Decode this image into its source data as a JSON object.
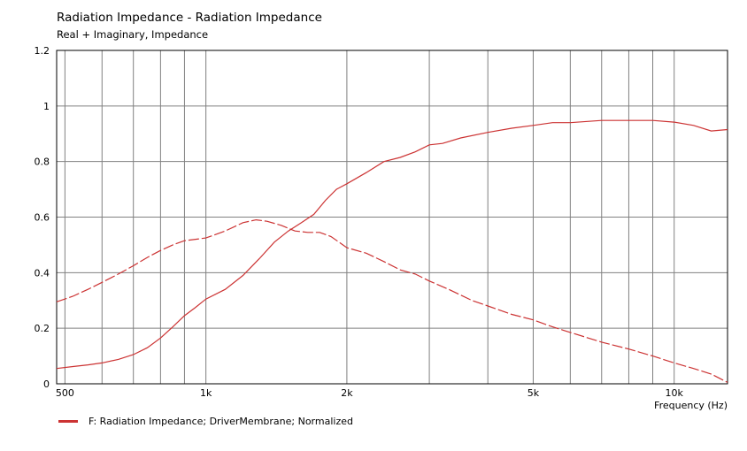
{
  "header": {
    "title": "Radiation Impedance - Radiation Impedance",
    "subtitle": "Real + Imaginary, Impedance"
  },
  "legend": {
    "entry": "F: Radiation Impedance;  DriverMembrane; Normalized"
  },
  "colors": {
    "series": "#cc3333",
    "grid": "#808080",
    "axis": "#000000"
  },
  "chart_data": {
    "type": "line",
    "xscale": "log",
    "xlim": [
      480,
      13000
    ],
    "ylim": [
      0,
      1.2
    ],
    "xlabel": "Frequency  (Hz)",
    "ylabel": "",
    "grid": true,
    "legend_position": "bottom-left",
    "x_tick_labels": [
      {
        "value": 500,
        "label": "500"
      },
      {
        "value": 1000,
        "label": "1k"
      },
      {
        "value": 2000,
        "label": "2k"
      },
      {
        "value": 5000,
        "label": "5k"
      },
      {
        "value": 10000,
        "label": "10k"
      }
    ],
    "x_minor_grid": [
      600,
      700,
      800,
      900,
      3000,
      4000,
      6000,
      7000,
      8000,
      9000
    ],
    "y_ticks": [
      {
        "value": 0,
        "label": "0"
      },
      {
        "value": 0.2,
        "label": "0.2"
      },
      {
        "value": 0.4,
        "label": "0.4"
      },
      {
        "value": 0.6,
        "label": "0.6"
      },
      {
        "value": 0.8,
        "label": "0.8"
      },
      {
        "value": 1,
        "label": "1"
      },
      {
        "value": 1.2,
        "label": "1.2"
      }
    ],
    "series": [
      {
        "style": "solid",
        "points": [
          [
            480,
            0.055
          ],
          [
            520,
            0.062
          ],
          [
            560,
            0.068
          ],
          [
            600,
            0.075
          ],
          [
            650,
            0.088
          ],
          [
            700,
            0.105
          ],
          [
            750,
            0.13
          ],
          [
            800,
            0.165
          ],
          [
            850,
            0.205
          ],
          [
            900,
            0.245
          ],
          [
            950,
            0.275
          ],
          [
            1000,
            0.305
          ],
          [
            1100,
            0.34
          ],
          [
            1200,
            0.39
          ],
          [
            1300,
            0.45
          ],
          [
            1400,
            0.51
          ],
          [
            1500,
            0.55
          ],
          [
            1600,
            0.58
          ],
          [
            1700,
            0.61
          ],
          [
            1800,
            0.66
          ],
          [
            1900,
            0.7
          ],
          [
            2000,
            0.72
          ],
          [
            2200,
            0.76
          ],
          [
            2400,
            0.8
          ],
          [
            2600,
            0.815
          ],
          [
            2800,
            0.835
          ],
          [
            3000,
            0.86
          ],
          [
            3200,
            0.865
          ],
          [
            3500,
            0.885
          ],
          [
            4000,
            0.905
          ],
          [
            4500,
            0.92
          ],
          [
            5000,
            0.93
          ],
          [
            5500,
            0.94
          ],
          [
            6000,
            0.94
          ],
          [
            7000,
            0.948
          ],
          [
            8000,
            0.948
          ],
          [
            9000,
            0.948
          ],
          [
            10000,
            0.942
          ],
          [
            11000,
            0.93
          ],
          [
            12000,
            0.91
          ],
          [
            13000,
            0.915
          ]
        ]
      },
      {
        "style": "dashed",
        "points": [
          [
            480,
            0.295
          ],
          [
            520,
            0.315
          ],
          [
            560,
            0.34
          ],
          [
            600,
            0.365
          ],
          [
            650,
            0.395
          ],
          [
            700,
            0.425
          ],
          [
            750,
            0.455
          ],
          [
            800,
            0.48
          ],
          [
            850,
            0.5
          ],
          [
            900,
            0.515
          ],
          [
            950,
            0.52
          ],
          [
            1000,
            0.525
          ],
          [
            1100,
            0.55
          ],
          [
            1200,
            0.58
          ],
          [
            1280,
            0.59
          ],
          [
            1350,
            0.585
          ],
          [
            1450,
            0.57
          ],
          [
            1550,
            0.55
          ],
          [
            1650,
            0.545
          ],
          [
            1750,
            0.545
          ],
          [
            1850,
            0.53
          ],
          [
            2000,
            0.49
          ],
          [
            2200,
            0.47
          ],
          [
            2400,
            0.44
          ],
          [
            2600,
            0.41
          ],
          [
            2800,
            0.395
          ],
          [
            3000,
            0.37
          ],
          [
            3300,
            0.34
          ],
          [
            3700,
            0.3
          ],
          [
            4000,
            0.28
          ],
          [
            4500,
            0.25
          ],
          [
            5000,
            0.23
          ],
          [
            5500,
            0.205
          ],
          [
            6000,
            0.185
          ],
          [
            7000,
            0.15
          ],
          [
            8000,
            0.125
          ],
          [
            9000,
            0.1
          ],
          [
            10000,
            0.075
          ],
          [
            11000,
            0.055
          ],
          [
            12000,
            0.035
          ],
          [
            13000,
            0.005
          ]
        ]
      }
    ]
  }
}
